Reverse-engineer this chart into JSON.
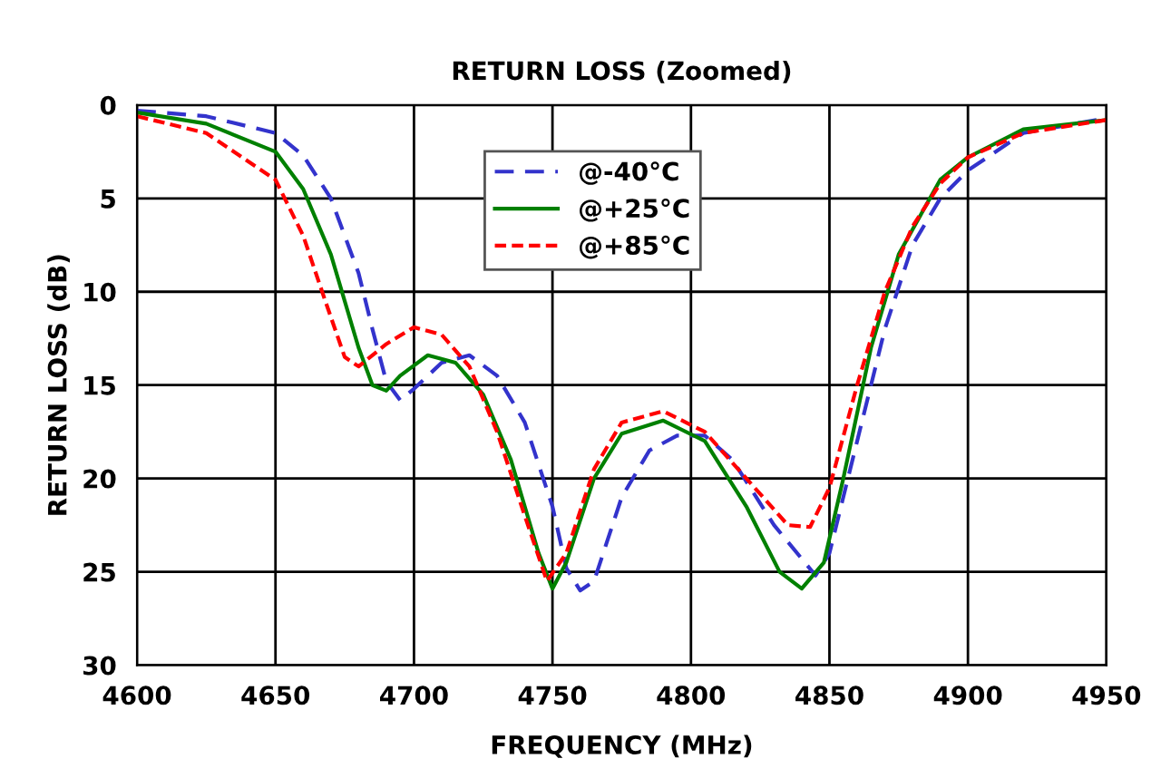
{
  "chart_data": {
    "type": "line",
    "title": "RETURN LOSS (Zoomed)",
    "xlabel": "FREQUENCY (MHz)",
    "ylabel": "RETURN LOSS (dB)",
    "xlim": [
      4600,
      4950
    ],
    "xticks": [
      4600,
      4650,
      4700,
      4750,
      4800,
      4850,
      4900,
      4950
    ],
    "ylim": [
      30,
      0
    ],
    "yticks": [
      0,
      5,
      10,
      15,
      20,
      25,
      30
    ],
    "grid": true,
    "legend": "top",
    "marker": "none",
    "series": [
      {
        "name": "@-40°C",
        "color": "#3333cc",
        "line_style": "dashed",
        "x": [
          4600,
          4625,
          4650,
          4660,
          4670,
          4680,
          4685,
          4690,
          4695,
          4700,
          4710,
          4720,
          4730,
          4740,
          4750,
          4755,
          4760,
          4765,
          4775,
          4785,
          4795,
          4805,
          4815,
          4830,
          4845,
          4850,
          4860,
          4870,
          4880,
          4890,
          4900,
          4920,
          4950
        ],
        "values": [
          0.3,
          0.6,
          1.5,
          2.7,
          5,
          9,
          12,
          14.8,
          15.8,
          15.2,
          13.8,
          13.4,
          14.5,
          17,
          21.5,
          24.8,
          26,
          25.5,
          21,
          18.5,
          17.7,
          17.7,
          19,
          22.5,
          25.2,
          24,
          18,
          12,
          7.5,
          5,
          3.5,
          1.5,
          0.7
        ]
      },
      {
        "name": "@+25°C",
        "color": "#008000",
        "line_style": "solid",
        "x": [
          4600,
          4625,
          4650,
          4660,
          4670,
          4675,
          4680,
          4685,
          4690,
          4695,
          4705,
          4715,
          4725,
          4735,
          4745,
          4750,
          4755,
          4765,
          4775,
          4790,
          4805,
          4820,
          4832,
          4840,
          4848,
          4855,
          4865,
          4875,
          4890,
          4900,
          4920,
          4950
        ],
        "values": [
          0.4,
          1,
          2.5,
          4.5,
          8,
          10.5,
          13,
          15,
          15.3,
          14.5,
          13.4,
          13.8,
          15.5,
          19,
          24,
          25.9,
          24.5,
          20,
          17.6,
          16.9,
          18,
          21.5,
          25,
          25.9,
          24.5,
          20,
          13,
          8,
          4,
          2.8,
          1.3,
          0.8
        ]
      },
      {
        "name": "@+85°C",
        "color": "#ff0000",
        "line_style": "dotted",
        "x": [
          4600,
          4625,
          4650,
          4660,
          4668,
          4675,
          4680,
          4690,
          4700,
          4710,
          4720,
          4730,
          4740,
          4748,
          4755,
          4765,
          4775,
          4790,
          4805,
          4820,
          4835,
          4843,
          4850,
          4860,
          4870,
          4880,
          4890,
          4900,
          4920,
          4950
        ],
        "values": [
          0.6,
          1.5,
          4,
          7,
          10.5,
          13.5,
          14,
          12.8,
          11.9,
          12.3,
          14,
          17.5,
          22,
          25.5,
          24,
          19.5,
          17,
          16.4,
          17.5,
          20,
          22.5,
          22.6,
          20.5,
          15,
          10,
          6.5,
          4.2,
          2.8,
          1.5,
          0.8
        ]
      }
    ]
  }
}
